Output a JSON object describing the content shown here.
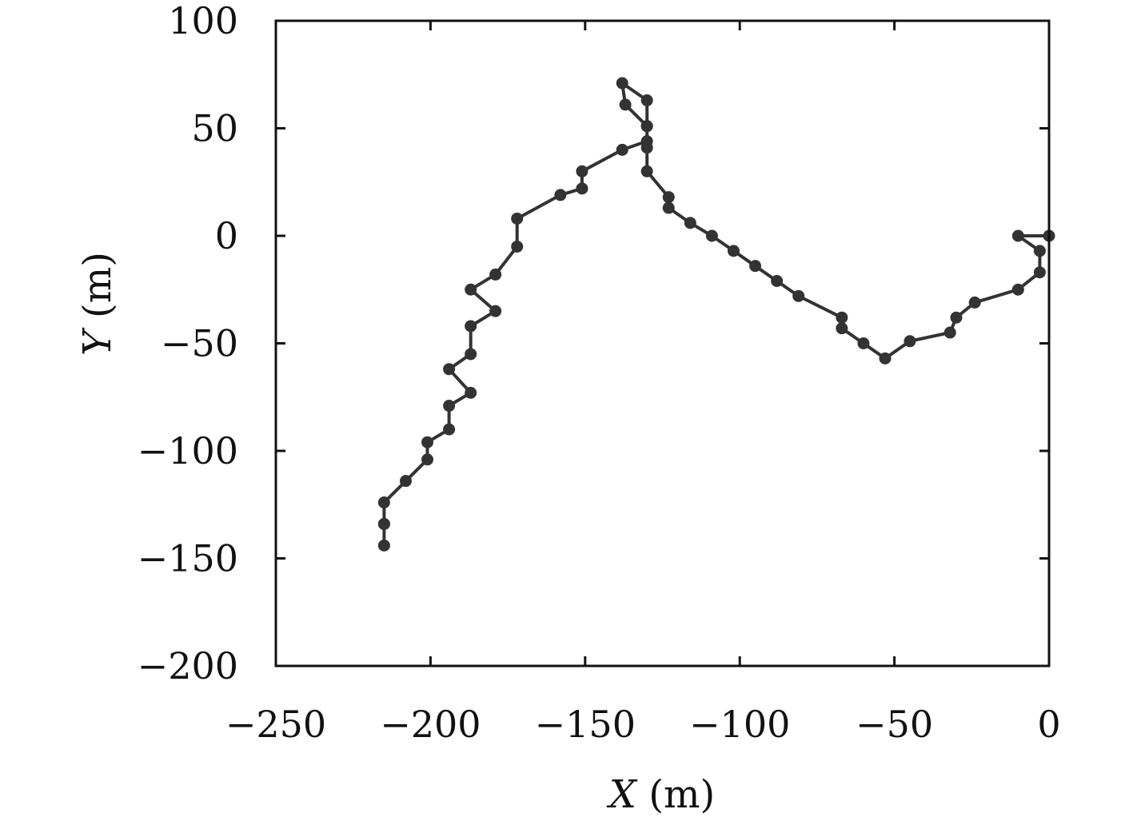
{
  "chart_data": {
    "type": "line",
    "title": "",
    "xlabel": {
      "var": "X",
      "unit": " (m)"
    },
    "ylabel": {
      "var": "Y",
      "unit": " (m)"
    },
    "xlim": [
      -250,
      0
    ],
    "ylim": [
      -200,
      100
    ],
    "xticks": [
      -250,
      -200,
      -150,
      -100,
      -50,
      0
    ],
    "yticks": [
      100,
      50,
      0,
      -50,
      -100,
      -150,
      -200
    ],
    "xtick_labels": [
      "−250",
      "−200",
      "−150",
      "−100",
      "−50",
      "0"
    ],
    "ytick_labels": [
      "100",
      "50",
      "0",
      "−50",
      "−100",
      "−150",
      "−200"
    ],
    "grid": false,
    "legend": "none",
    "line_color": "#333333",
    "series": [
      {
        "x": [
          0,
          -10,
          -3,
          -3,
          -10,
          -24,
          -30,
          -32,
          -45,
          -53,
          -60,
          -67,
          -67,
          -81,
          -88,
          -95,
          -102,
          -109,
          -116,
          -123,
          -123,
          -130,
          -130,
          -130,
          -137,
          -138,
          -130,
          -130,
          -130,
          -138,
          -151,
          -151,
          -158,
          -172,
          -172,
          -179,
          -187,
          -179,
          -187,
          -187,
          -194,
          -187,
          -194,
          -194,
          -201,
          -201,
          -208,
          -215,
          -215,
          -215,
          -215
        ],
        "y": [
          0,
          0,
          -7,
          -17,
          -25,
          -31,
          -38,
          -45,
          -49,
          -57,
          -50,
          -43,
          -38,
          -28,
          -21,
          -14,
          -7,
          0,
          6,
          13,
          18,
          30,
          41,
          51,
          61,
          71,
          63,
          51,
          44,
          40,
          30,
          22,
          19,
          8,
          -5,
          -18,
          -25,
          -35,
          -42,
          -55,
          -62,
          -73,
          -79,
          -90,
          -96,
          -104,
          -114,
          -124,
          -134,
          -144,
          -134
        ]
      }
    ]
  }
}
